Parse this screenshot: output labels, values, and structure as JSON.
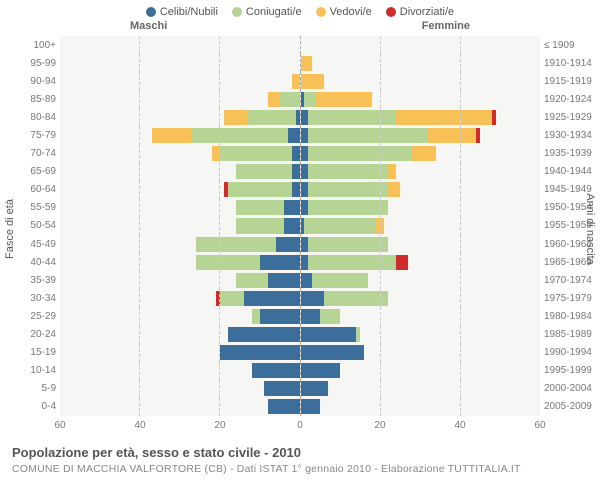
{
  "legend": [
    {
      "label": "Celibi/Nubili",
      "color": "#3b6e9a"
    },
    {
      "label": "Coniugati/e",
      "color": "#b6d493"
    },
    {
      "label": "Vedovi/e",
      "color": "#f7c158"
    },
    {
      "label": "Divorziati/e",
      "color": "#cf2c2c"
    }
  ],
  "titles": {
    "maschi": "Maschi",
    "femmine": "Femmine"
  },
  "ylabels": {
    "left": "Fasce di età",
    "right": "Anni di nascita"
  },
  "footer": {
    "title": "Popolazione per età, sesso e stato civile - 2010",
    "sub": "COMUNE DI MACCHIA VALFORTORE (CB) - Dati ISTAT 1° gennaio 2010 - Elaborazione TUTTITALIA.IT"
  },
  "chart": {
    "type": "population-pyramid",
    "background_color": "#f6f6f4",
    "grid_color": "#cccccc",
    "center_line_color": "#aaaaaa",
    "xmax": 60,
    "xticks": [
      60,
      40,
      20,
      0,
      20,
      40,
      60
    ],
    "series_colors": {
      "celibi": "#3b6e9a",
      "coniugati": "#b6d493",
      "vedovi": "#f7c158",
      "divorziati": "#cf2c2c"
    },
    "rows": [
      {
        "age": "100+",
        "birth": "≤ 1909",
        "m": {
          "c": 0,
          "k": 0,
          "v": 0,
          "d": 0
        },
        "f": {
          "c": 0,
          "k": 0,
          "v": 0,
          "d": 0
        }
      },
      {
        "age": "95-99",
        "birth": "1910-1914",
        "m": {
          "c": 0,
          "k": 0,
          "v": 0,
          "d": 0
        },
        "f": {
          "c": 0,
          "k": 0,
          "v": 3,
          "d": 0
        }
      },
      {
        "age": "90-94",
        "birth": "1915-1919",
        "m": {
          "c": 0,
          "k": 0,
          "v": 2,
          "d": 0
        },
        "f": {
          "c": 0,
          "k": 0,
          "v": 6,
          "d": 0
        }
      },
      {
        "age": "85-89",
        "birth": "1920-1924",
        "m": {
          "c": 0,
          "k": 5,
          "v": 3,
          "d": 0
        },
        "f": {
          "c": 1,
          "k": 3,
          "v": 14,
          "d": 0
        }
      },
      {
        "age": "80-84",
        "birth": "1925-1929",
        "m": {
          "c": 1,
          "k": 12,
          "v": 6,
          "d": 0
        },
        "f": {
          "c": 2,
          "k": 22,
          "v": 24,
          "d": 1
        }
      },
      {
        "age": "75-79",
        "birth": "1930-1934",
        "m": {
          "c": 3,
          "k": 24,
          "v": 10,
          "d": 0
        },
        "f": {
          "c": 2,
          "k": 30,
          "v": 12,
          "d": 1
        }
      },
      {
        "age": "70-74",
        "birth": "1935-1939",
        "m": {
          "c": 2,
          "k": 18,
          "v": 2,
          "d": 0
        },
        "f": {
          "c": 2,
          "k": 26,
          "v": 6,
          "d": 0
        }
      },
      {
        "age": "65-69",
        "birth": "1940-1944",
        "m": {
          "c": 2,
          "k": 14,
          "v": 0,
          "d": 0
        },
        "f": {
          "c": 2,
          "k": 20,
          "v": 2,
          "d": 0
        }
      },
      {
        "age": "60-64",
        "birth": "1945-1949",
        "m": {
          "c": 2,
          "k": 16,
          "v": 0,
          "d": 1
        },
        "f": {
          "c": 2,
          "k": 20,
          "v": 3,
          "d": 0
        }
      },
      {
        "age": "55-59",
        "birth": "1950-1954",
        "m": {
          "c": 4,
          "k": 12,
          "v": 0,
          "d": 0
        },
        "f": {
          "c": 2,
          "k": 20,
          "v": 0,
          "d": 0
        }
      },
      {
        "age": "50-54",
        "birth": "1955-1959",
        "m": {
          "c": 4,
          "k": 12,
          "v": 0,
          "d": 0
        },
        "f": {
          "c": 1,
          "k": 18,
          "v": 2,
          "d": 0
        }
      },
      {
        "age": "45-49",
        "birth": "1960-1964",
        "m": {
          "c": 6,
          "k": 20,
          "v": 0,
          "d": 0
        },
        "f": {
          "c": 2,
          "k": 20,
          "v": 0,
          "d": 0
        }
      },
      {
        "age": "40-44",
        "birth": "1965-1969",
        "m": {
          "c": 10,
          "k": 16,
          "v": 0,
          "d": 0
        },
        "f": {
          "c": 2,
          "k": 22,
          "v": 0,
          "d": 3
        }
      },
      {
        "age": "35-39",
        "birth": "1970-1974",
        "m": {
          "c": 8,
          "k": 8,
          "v": 0,
          "d": 0
        },
        "f": {
          "c": 3,
          "k": 14,
          "v": 0,
          "d": 0
        }
      },
      {
        "age": "30-34",
        "birth": "1975-1979",
        "m": {
          "c": 14,
          "k": 6,
          "v": 0,
          "d": 1
        },
        "f": {
          "c": 6,
          "k": 16,
          "v": 0,
          "d": 0
        }
      },
      {
        "age": "25-29",
        "birth": "1980-1984",
        "m": {
          "c": 10,
          "k": 2,
          "v": 0,
          "d": 0
        },
        "f": {
          "c": 5,
          "k": 5,
          "v": 0,
          "d": 0
        }
      },
      {
        "age": "20-24",
        "birth": "1985-1989",
        "m": {
          "c": 18,
          "k": 0,
          "v": 0,
          "d": 0
        },
        "f": {
          "c": 14,
          "k": 1,
          "v": 0,
          "d": 0
        }
      },
      {
        "age": "15-19",
        "birth": "1990-1994",
        "m": {
          "c": 20,
          "k": 0,
          "v": 0,
          "d": 0
        },
        "f": {
          "c": 16,
          "k": 0,
          "v": 0,
          "d": 0
        }
      },
      {
        "age": "10-14",
        "birth": "1995-1999",
        "m": {
          "c": 12,
          "k": 0,
          "v": 0,
          "d": 0
        },
        "f": {
          "c": 10,
          "k": 0,
          "v": 0,
          "d": 0
        }
      },
      {
        "age": "5-9",
        "birth": "2000-2004",
        "m": {
          "c": 9,
          "k": 0,
          "v": 0,
          "d": 0
        },
        "f": {
          "c": 7,
          "k": 0,
          "v": 0,
          "d": 0
        }
      },
      {
        "age": "0-4",
        "birth": "2005-2009",
        "m": {
          "c": 8,
          "k": 0,
          "v": 0,
          "d": 0
        },
        "f": {
          "c": 5,
          "k": 0,
          "v": 0,
          "d": 0
        }
      }
    ]
  }
}
